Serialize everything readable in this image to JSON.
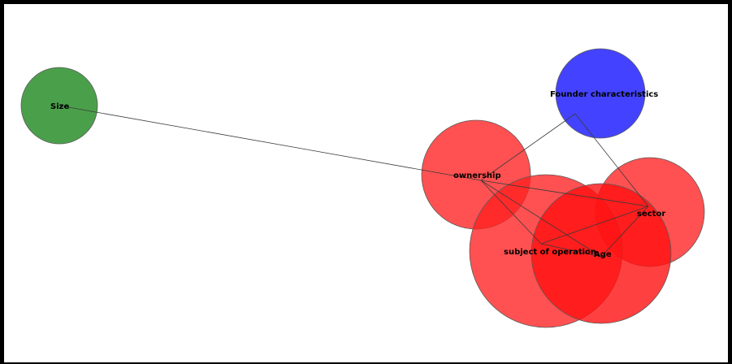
{
  "nodes": [
    {
      "id": "size",
      "label": "Size",
      "color": "#228B22",
      "opacity": 0.82
    },
    {
      "id": "founder",
      "label": "Founder characteristics",
      "color": "#3333FF",
      "opacity": 0.92
    },
    {
      "id": "ownership",
      "label": "ownership",
      "color": "#FF2020",
      "opacity": 0.78
    },
    {
      "id": "sector",
      "label": "sector",
      "color": "#FF2020",
      "opacity": 0.78
    },
    {
      "id": "subject",
      "label": "subject of operation",
      "color": "#FF2020",
      "opacity": 0.78
    },
    {
      "id": "age",
      "label": "Age",
      "color": "#FF1010",
      "opacity": 0.8
    }
  ],
  "edges": [
    [
      "size",
      "ownership"
    ],
    [
      "founder",
      "ownership"
    ],
    [
      "founder",
      "sector"
    ],
    [
      "ownership",
      "subject"
    ],
    [
      "ownership",
      "age"
    ],
    [
      "ownership",
      "sector"
    ],
    [
      "subject",
      "age"
    ],
    [
      "subject",
      "sector"
    ],
    [
      "age",
      "sector"
    ]
  ]
}
